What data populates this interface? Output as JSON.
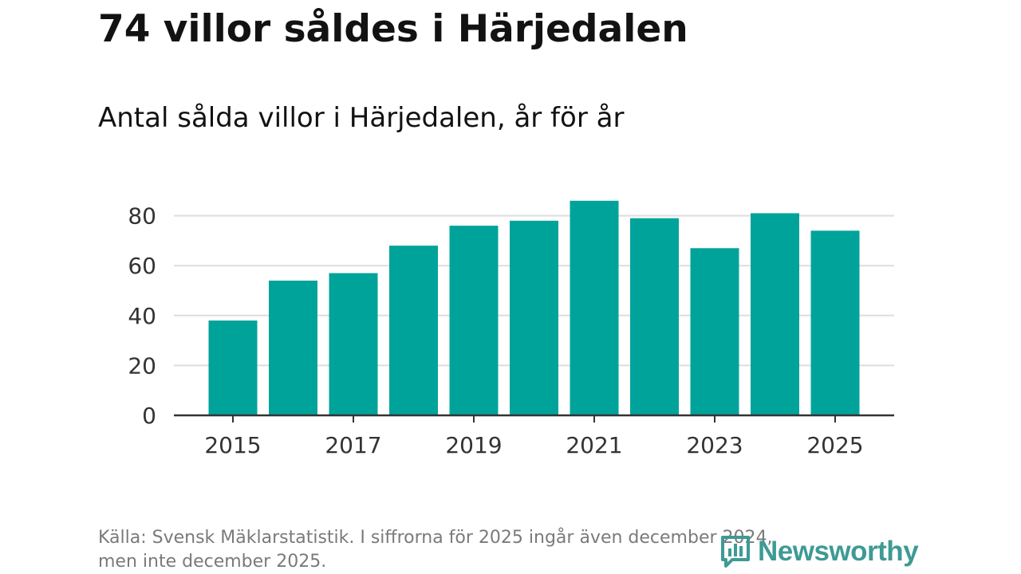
{
  "title": "74 villor såldes i Härjedalen",
  "subtitle": "Antal sålda villor i Härjedalen, år för år",
  "source": {
    "line1": "Källa: Svensk Mäklarstatistik. I siffrorna för 2025 ingår även december 2024,",
    "line2": "men inte december 2025."
  },
  "logo": {
    "text": "Newsworthy",
    "icon": "newsworthy-logo-icon"
  },
  "colors": {
    "bar": "#00a39a",
    "grid": "#dddddd",
    "axis": "#333333",
    "logo": "#3e9a94"
  },
  "chart_data": {
    "type": "bar",
    "title": "74 villor såldes i Härjedalen",
    "subtitle": "Antal sålda villor i Härjedalen, år för år",
    "categories": [
      "2015",
      "2016",
      "2017",
      "2018",
      "2019",
      "2020",
      "2021",
      "2022",
      "2023",
      "2024",
      "2025"
    ],
    "values": [
      38,
      54,
      57,
      68,
      76,
      78,
      86,
      79,
      67,
      81,
      74
    ],
    "x_tick_labels": [
      "2015",
      "2017",
      "2019",
      "2021",
      "2023",
      "2025"
    ],
    "y_ticks": [
      0,
      20,
      40,
      60,
      80
    ],
    "ylim": [
      0,
      90
    ],
    "xlabel": "",
    "ylabel": "",
    "grid": true,
    "legend": false
  }
}
